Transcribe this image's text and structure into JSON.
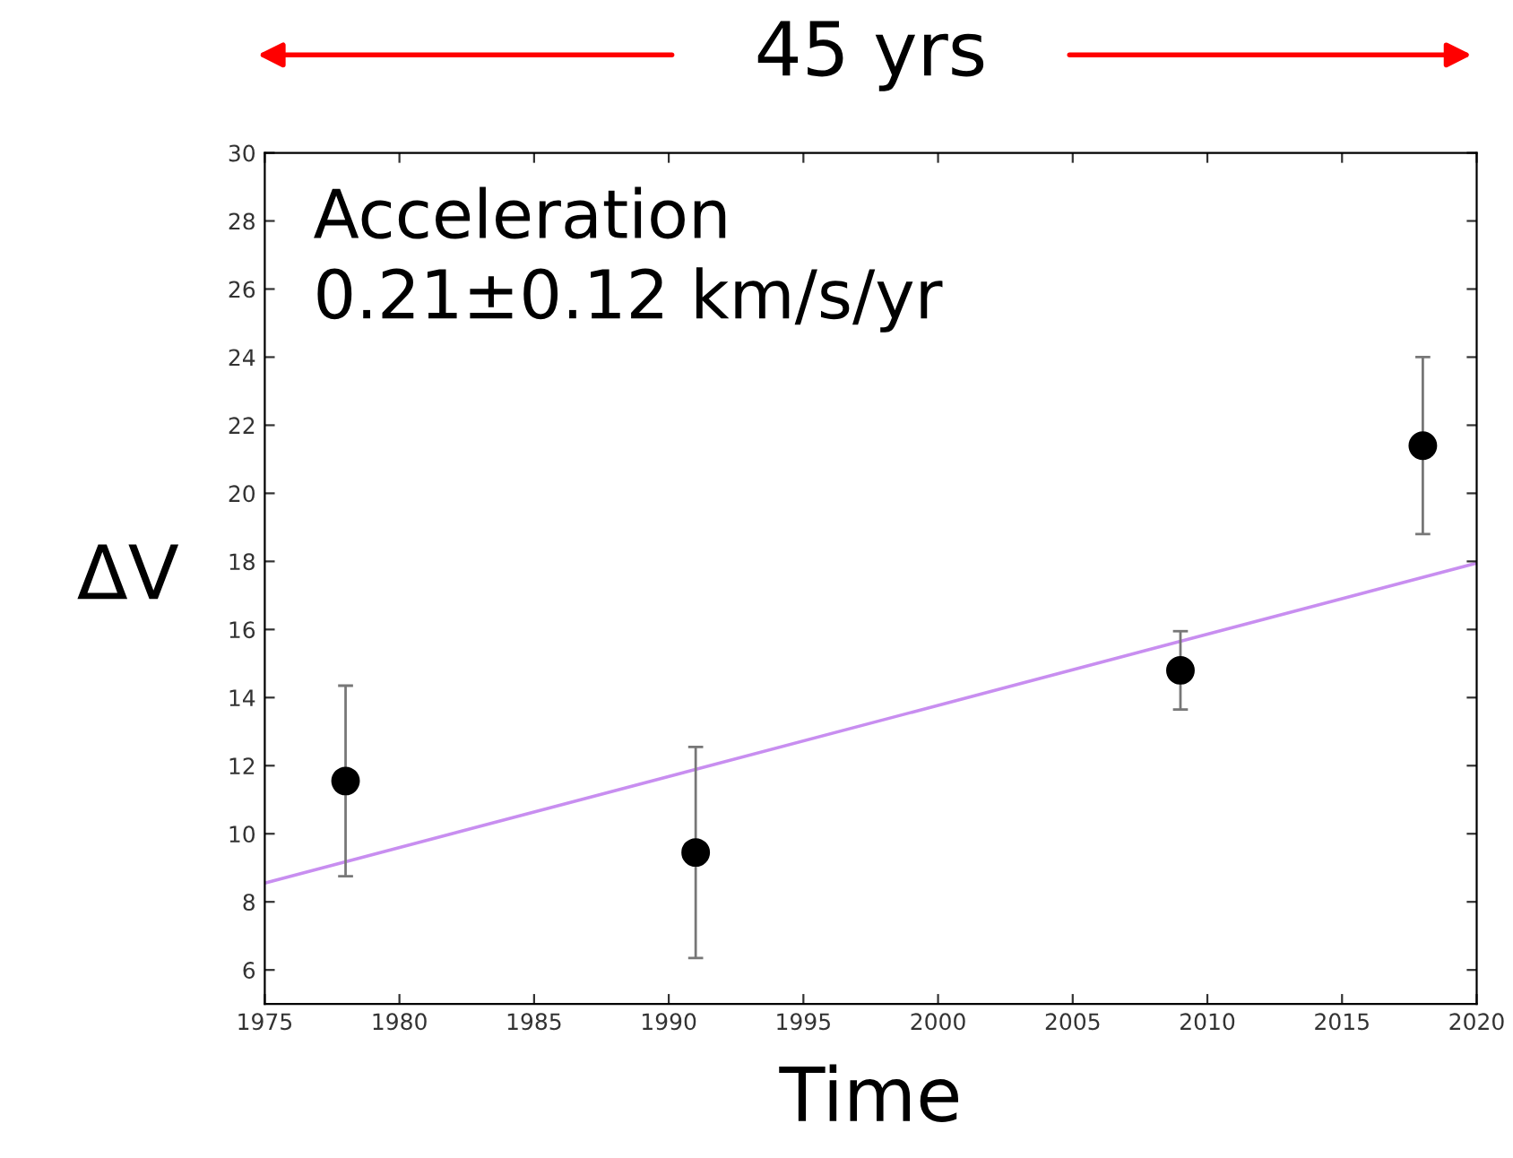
{
  "chart_data": {
    "type": "scatter",
    "xlabel": "Time",
    "ylabel": "ΔV",
    "annotations": [
      "45 yrs",
      "Acceleration\n0.21±0.12 km/s/yr"
    ],
    "x": [
      1978,
      1991,
      2009,
      2018
    ],
    "series": [
      {
        "color": "#000000",
        "marker": "circle",
        "values": [
          11.55,
          9.45,
          14.8,
          21.4
        ],
        "errors": [
          2.8,
          3.1,
          1.15,
          2.6
        ]
      },
      {
        "type": "line",
        "color": "#c88ef0",
        "marker": "none",
        "x": [
          1975,
          2020
        ],
        "values": [
          8.55,
          17.95
        ]
      }
    ],
    "xlim": [
      1975,
      2020
    ],
    "xticks": [
      1975,
      1980,
      1985,
      1990,
      1995,
      2000,
      2005,
      2010,
      2015,
      2020
    ],
    "ylim": [
      5,
      30
    ],
    "yticks": [
      6,
      8,
      10,
      12,
      14,
      16,
      18,
      20,
      22,
      24,
      26,
      28,
      30
    ],
    "grid": false,
    "legend": false
  }
}
